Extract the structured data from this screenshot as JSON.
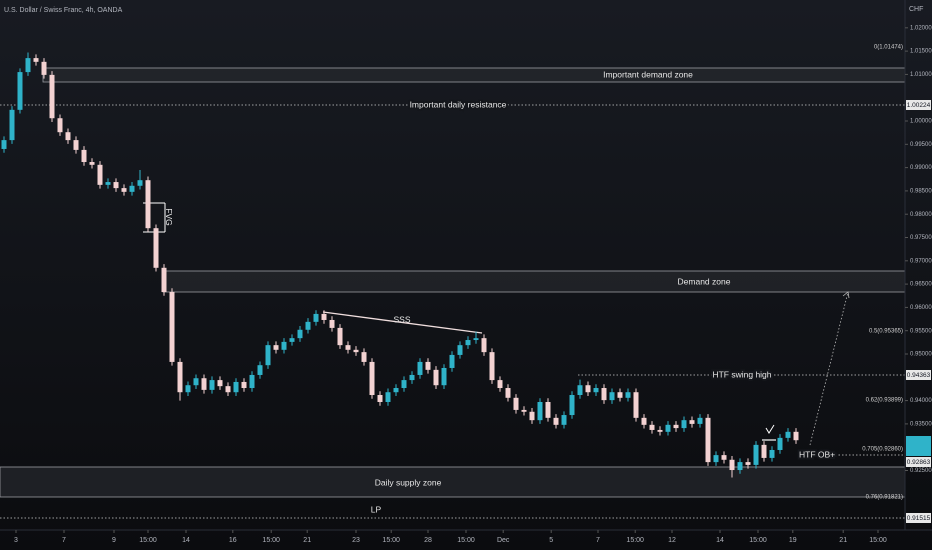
{
  "chart_data": {
    "type": "candlestick",
    "title": "U.S. Dollar / Swiss Franc, 4h, OANDA",
    "currency": "CHF",
    "up_color": "#2fb3c9",
    "down_color": "#f3d2d2",
    "open": [
      0.994,
      0.9959,
      1.0024,
      1.0105,
      1.0135,
      1.0127,
      1.0099,
      1.0006,
      0.9976,
      0.9959,
      0.9938,
      0.9912,
      0.9906,
      0.9863,
      0.9869,
      0.9856,
      0.9848,
      0.9861,
      0.9873,
      0.977,
      0.9685,
      0.9633,
      0.9483,
      0.9418,
      0.9433,
      0.9448,
      0.9423,
      0.9444,
      0.9431,
      0.9418,
      0.944,
      0.9427,
      0.9455,
      0.9476,
      0.9519,
      0.9509,
      0.9526,
      0.9534,
      0.9552,
      0.9569,
      0.9586,
      0.9573,
      0.9556,
      0.9519,
      0.9509,
      0.9504,
      0.9483,
      0.9412,
      0.9397,
      0.9418,
      0.9427,
      0.9444,
      0.9455,
      0.9483,
      0.9466,
      0.9433,
      0.947,
      0.9498,
      0.9519,
      0.953,
      0.9534,
      0.9504,
      0.9444,
      0.9427,
      0.9406,
      0.938,
      0.9376,
      0.9358,
      0.9397,
      0.9363,
      0.9348,
      0.9369,
      0.9412,
      0.9433,
      0.9418,
      0.9427,
      0.9401,
      0.9418,
      0.9406,
      0.9418,
      0.9363,
      0.9348,
      0.9337,
      0.9333,
      0.9348,
      0.9341,
      0.9358,
      0.935,
      0.9363,
      0.9268,
      0.9283,
      0.9273,
      0.9251,
      0.9268,
      0.9262,
      0.9305,
      0.9277,
      0.9294,
      0.932,
      0.9333
    ],
    "high": [
      0.9967,
      1.0032,
      1.0113,
      1.0147,
      1.0143,
      1.0135,
      1.0107,
      1.0014,
      0.9984,
      0.9967,
      0.9946,
      0.992,
      0.9914,
      0.9877,
      0.9877,
      0.9864,
      0.9869,
      0.9895,
      0.9881,
      0.9778,
      0.9693,
      0.9641,
      0.9491,
      0.9441,
      0.9456,
      0.9456,
      0.9452,
      0.9452,
      0.9439,
      0.9448,
      0.9448,
      0.9463,
      0.9484,
      0.9527,
      0.9527,
      0.9534,
      0.9542,
      0.956,
      0.9577,
      0.9594,
      0.9594,
      0.9581,
      0.9564,
      0.9527,
      0.9517,
      0.9512,
      0.9491,
      0.942,
      0.9426,
      0.9435,
      0.9452,
      0.9463,
      0.9491,
      0.9491,
      0.9474,
      0.9478,
      0.9506,
      0.9527,
      0.9538,
      0.9548,
      0.9542,
      0.9512,
      0.9452,
      0.9435,
      0.9414,
      0.9388,
      0.9384,
      0.9405,
      0.9405,
      0.9371,
      0.9377,
      0.942,
      0.9445,
      0.9441,
      0.9435,
      0.9435,
      0.9426,
      0.9426,
      0.9426,
      0.9426,
      0.9371,
      0.9356,
      0.9345,
      0.9356,
      0.9356,
      0.9366,
      0.9366,
      0.9371,
      0.9371,
      0.9291,
      0.9291,
      0.9281,
      0.9276,
      0.9276,
      0.9313,
      0.9313,
      0.9302,
      0.9328,
      0.9341,
      0.9341
    ],
    "low": [
      0.9932,
      0.9951,
      1.0016,
      1.0097,
      1.0119,
      1.0091,
      0.9998,
      0.9968,
      0.9951,
      0.993,
      0.9904,
      0.9898,
      0.9855,
      0.9855,
      0.9848,
      0.984,
      0.984,
      0.9853,
      0.9762,
      0.9677,
      0.9625,
      0.9475,
      0.94,
      0.941,
      0.9425,
      0.9415,
      0.9415,
      0.9423,
      0.941,
      0.941,
      0.9419,
      0.9419,
      0.9447,
      0.9468,
      0.9501,
      0.9501,
      0.9518,
      0.9526,
      0.9544,
      0.9561,
      0.9565,
      0.9548,
      0.9511,
      0.9501,
      0.9496,
      0.9475,
      0.9404,
      0.9389,
      0.9389,
      0.941,
      0.9419,
      0.9436,
      0.9447,
      0.9458,
      0.9425,
      0.9425,
      0.9462,
      0.949,
      0.9511,
      0.9522,
      0.9496,
      0.9436,
      0.9419,
      0.9398,
      0.9372,
      0.9368,
      0.935,
      0.935,
      0.9355,
      0.934,
      0.934,
      0.9361,
      0.9404,
      0.941,
      0.941,
      0.9393,
      0.9393,
      0.9398,
      0.9398,
      0.9355,
      0.934,
      0.9329,
      0.9325,
      0.9325,
      0.9333,
      0.9333,
      0.9342,
      0.9342,
      0.926,
      0.926,
      0.9265,
      0.9235,
      0.9243,
      0.9254,
      0.9254,
      0.9269,
      0.9269,
      0.9286,
      0.9312,
      0.9307
    ],
    "close": [
      0.9959,
      1.0024,
      1.0105,
      1.0135,
      1.0127,
      1.0099,
      1.0006,
      0.9976,
      0.9959,
      0.9938,
      0.9912,
      0.9906,
      0.9863,
      0.9869,
      0.9856,
      0.9848,
      0.9861,
      0.9873,
      0.977,
      0.9685,
      0.9633,
      0.9483,
      0.9418,
      0.9433,
      0.9448,
      0.9423,
      0.9444,
      0.9431,
      0.9418,
      0.944,
      0.9427,
      0.9455,
      0.9476,
      0.9519,
      0.9509,
      0.9526,
      0.9534,
      0.9552,
      0.9569,
      0.9586,
      0.9573,
      0.9556,
      0.9519,
      0.9509,
      0.9504,
      0.9483,
      0.9412,
      0.9397,
      0.9418,
      0.9427,
      0.9444,
      0.9455,
      0.9483,
      0.9466,
      0.9433,
      0.947,
      0.9498,
      0.9519,
      0.953,
      0.9534,
      0.9504,
      0.9444,
      0.9427,
      0.9406,
      0.938,
      0.9376,
      0.9358,
      0.9397,
      0.9363,
      0.9348,
      0.9369,
      0.9412,
      0.9433,
      0.9418,
      0.9427,
      0.9401,
      0.9418,
      0.9406,
      0.9418,
      0.9363,
      0.9348,
      0.9337,
      0.9333,
      0.9348,
      0.9341,
      0.9358,
      0.935,
      0.9363,
      0.9268,
      0.9283,
      0.9273,
      0.9251,
      0.9268,
      0.9262,
      0.9305,
      0.9277,
      0.9294,
      0.932,
      0.9333,
      0.9315
    ],
    "xlim": [
      -0.5,
      112
    ],
    "xticks": [
      {
        "value": 1.5,
        "label": "3"
      },
      {
        "value": 7.5,
        "label": "7"
      },
      {
        "value": 13.75,
        "label": "9"
      },
      {
        "value": 18,
        "label": "15:00"
      },
      {
        "value": 22.75,
        "label": "14"
      },
      {
        "value": 28.6,
        "label": "16"
      },
      {
        "value": 33.4,
        "label": "15:00"
      },
      {
        "value": 37.9,
        "label": "21"
      },
      {
        "value": 44,
        "label": "23"
      },
      {
        "value": 48.4,
        "label": "15:00"
      },
      {
        "value": 53,
        "label": "28"
      },
      {
        "value": 57.75,
        "label": "15:00"
      },
      {
        "value": 62.4,
        "label": "Dec"
      },
      {
        "value": 68.4,
        "label": "5"
      },
      {
        "value": 74.25,
        "label": "7"
      },
      {
        "value": 78.9,
        "label": "15:00"
      },
      {
        "value": 83.5,
        "label": "12"
      },
      {
        "value": 89.5,
        "label": "14"
      },
      {
        "value": 94.25,
        "label": "15:00"
      },
      {
        "value": 98.6,
        "label": "19"
      },
      {
        "value": 104.9,
        "label": "21"
      },
      {
        "value": 109.25,
        "label": "15:00"
      }
    ],
    "ylim": [
      0.91223,
      1.02597
    ],
    "yticks": [
      {
        "value": 1.02,
        "label": "1.02000"
      },
      {
        "value": 1.015,
        "label": "1.01500"
      },
      {
        "value": 1.01,
        "label": "1.01000"
      },
      {
        "value": 1.0,
        "label": "1.00000"
      },
      {
        "value": 0.995,
        "label": "0.99500"
      },
      {
        "value": 0.99,
        "label": "0.99000"
      },
      {
        "value": 0.985,
        "label": "0.98500"
      },
      {
        "value": 0.98,
        "label": "0.98000"
      },
      {
        "value": 0.975,
        "label": "0.97500"
      },
      {
        "value": 0.97,
        "label": "0.97000"
      },
      {
        "value": 0.965,
        "label": "0.96500"
      },
      {
        "value": 0.96,
        "label": "0.96000"
      },
      {
        "value": 0.955,
        "label": "0.95500"
      },
      {
        "value": 0.95,
        "label": "0.95000"
      },
      {
        "value": 0.94,
        "label": "0.94000"
      },
      {
        "value": 0.935,
        "label": "0.93500"
      },
      {
        "value": 0.925,
        "label": "0.92500"
      }
    ],
    "annotations": [
      "Important demand zone",
      "Important daily resistance",
      "Demand zone",
      "FVG",
      "SSS",
      "HTF swing high",
      "HTF OB+",
      "Daily supply zone",
      "LP",
      "0(1.01474)",
      "0.5(0.95365)",
      "0.62(0.93899)",
      "0.705(0.92860)",
      "0.76(0.91821)"
    ],
    "price_labels": [
      "1.00224",
      "0.94363",
      "0.92863",
      "0.91515"
    ]
  }
}
